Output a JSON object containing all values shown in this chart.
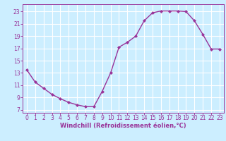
{
  "x": [
    0,
    1,
    2,
    3,
    4,
    5,
    6,
    7,
    8,
    9,
    10,
    11,
    12,
    13,
    14,
    15,
    16,
    17,
    18,
    19,
    20,
    21,
    22,
    23
  ],
  "y": [
    13.5,
    11.5,
    10.5,
    9.5,
    8.8,
    8.2,
    7.8,
    7.5,
    7.5,
    10.0,
    13.0,
    17.2,
    18.0,
    19.0,
    21.5,
    22.8,
    23.1,
    23.1,
    23.1,
    23.0,
    21.5,
    19.3,
    16.9,
    16.9
  ],
  "line_color": "#993399",
  "marker": "D",
  "markersize": 2.0,
  "linewidth": 1.0,
  "bg_color": "#cceeff",
  "grid_color": "#ffffff",
  "xlabel": "Windchill (Refroidissement éolien,°C)",
  "xlabel_color": "#993399",
  "xlabel_fontsize": 6.0,
  "tick_color": "#993399",
  "tick_fontsize": 5.5,
  "ylim": [
    6.5,
    24.2
  ],
  "yticks": [
    7,
    9,
    11,
    13,
    15,
    17,
    19,
    21,
    23
  ],
  "xlim": [
    -0.5,
    23.5
  ],
  "xticks": [
    0,
    1,
    2,
    3,
    4,
    5,
    6,
    7,
    8,
    9,
    10,
    11,
    12,
    13,
    14,
    15,
    16,
    17,
    18,
    19,
    20,
    21,
    22,
    23
  ],
  "spine_color": "#993399"
}
